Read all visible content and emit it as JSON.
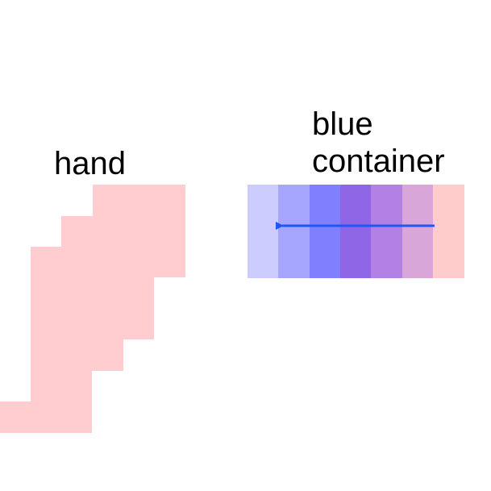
{
  "labels": {
    "hand": "hand",
    "container_line1": "blue",
    "container_line2": "container"
  },
  "colors": {
    "hand": "#ffcccf",
    "arrow": "#1f57f2",
    "container_segments": [
      "#ccccff",
      "#a6a6ff",
      "#8080ff",
      "#8f66e6",
      "#b380e6",
      "#d9a6d9",
      "#ffcccc"
    ]
  },
  "arrow_direction": "left"
}
